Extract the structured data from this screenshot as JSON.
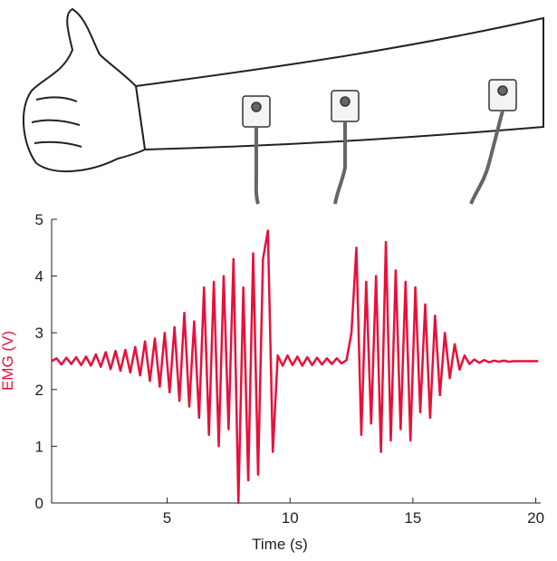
{
  "chart_data": {
    "type": "line",
    "x_label": "Time (s)",
    "y_label": "EMG  (V)",
    "xlim": [
      0.3,
      20.2
    ],
    "ylim": [
      0,
      5
    ],
    "xticks": [
      5,
      10,
      15,
      20
    ],
    "yticks": [
      0,
      1,
      2,
      3,
      4,
      5
    ],
    "x": [
      0.3,
      0.5,
      0.7,
      0.9,
      1.1,
      1.3,
      1.5,
      1.7,
      1.9,
      2.1,
      2.3,
      2.5,
      2.7,
      2.9,
      3.1,
      3.3,
      3.5,
      3.7,
      3.9,
      4.1,
      4.3,
      4.5,
      4.7,
      4.9,
      5.1,
      5.3,
      5.5,
      5.7,
      5.9,
      6.1,
      6.3,
      6.5,
      6.7,
      6.9,
      7.1,
      7.3,
      7.5,
      7.7,
      7.9,
      8.1,
      8.3,
      8.5,
      8.7,
      8.9,
      9.1,
      9.3,
      9.5,
      9.7,
      9.9,
      10.1,
      10.3,
      10.5,
      10.7,
      10.9,
      11.1,
      11.3,
      11.5,
      11.7,
      11.9,
      12.1,
      12.3,
      12.5,
      12.7,
      12.9,
      13.1,
      13.3,
      13.5,
      13.7,
      13.9,
      14.1,
      14.3,
      14.5,
      14.7,
      14.9,
      15.1,
      15.3,
      15.5,
      15.7,
      15.9,
      16.1,
      16.3,
      16.5,
      16.7,
      16.9,
      17.1,
      17.3,
      17.5,
      17.7,
      17.9,
      18.1,
      18.3,
      18.5,
      18.7,
      18.9,
      19.1,
      19.3,
      19.5,
      19.7,
      19.9,
      20.1
    ],
    "series": [
      {
        "color": "#e8103a",
        "values": [
          2.5,
          2.55,
          2.44,
          2.56,
          2.45,
          2.57,
          2.43,
          2.58,
          2.42,
          2.62,
          2.4,
          2.66,
          2.36,
          2.68,
          2.33,
          2.7,
          2.3,
          2.75,
          2.25,
          2.85,
          2.15,
          2.9,
          2.05,
          3.0,
          1.95,
          3.1,
          1.8,
          3.35,
          1.7,
          3.2,
          1.5,
          3.8,
          1.2,
          3.9,
          1.0,
          4.0,
          1.3,
          4.3,
          0.0,
          3.8,
          0.4,
          4.4,
          0.5,
          4.3,
          4.8,
          0.9,
          2.6,
          2.42,
          2.6,
          2.43,
          2.58,
          2.42,
          2.57,
          2.43,
          2.56,
          2.44,
          2.55,
          2.45,
          2.55,
          2.46,
          2.52,
          3.0,
          4.5,
          1.2,
          3.9,
          1.4,
          4.0,
          0.9,
          4.6,
          1.1,
          4.1,
          1.3,
          3.9,
          1.1,
          3.8,
          1.6,
          3.5,
          1.5,
          3.3,
          1.9,
          3.0,
          2.2,
          2.8,
          2.35,
          2.6,
          2.45,
          2.53,
          2.47,
          2.52,
          2.48,
          2.51,
          2.49,
          2.51,
          2.49,
          2.5,
          2.5,
          2.5,
          2.5,
          2.5,
          2.5
        ]
      }
    ]
  }
}
